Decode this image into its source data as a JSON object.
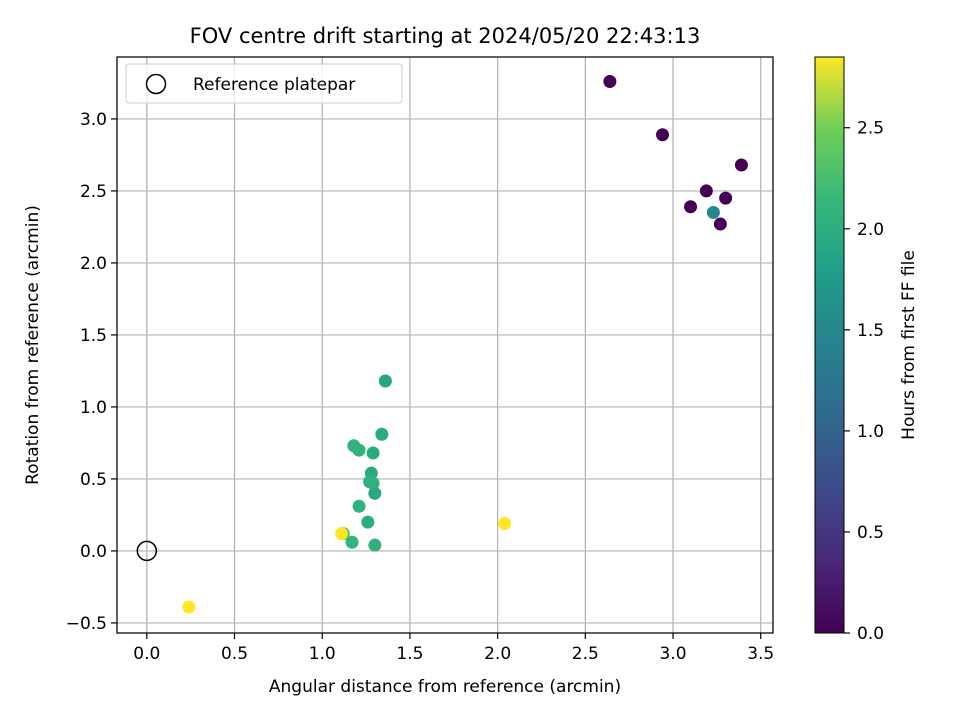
{
  "chart_data": {
    "type": "scatter",
    "title": "FOV centre drift starting at 2024/05/20 22:43:13",
    "xlabel": "Angular distance from reference (arcmin)",
    "ylabel": "Rotation from reference (arcmin)",
    "xlim": [
      -0.17,
      3.57
    ],
    "ylim": [
      -0.57,
      3.43
    ],
    "xticks": [
      0.0,
      0.5,
      1.0,
      1.5,
      2.0,
      2.5,
      3.0,
      3.5
    ],
    "xtick_labels": [
      "0.0",
      "0.5",
      "1.0",
      "1.5",
      "2.0",
      "2.5",
      "3.0",
      "3.5"
    ],
    "yticks": [
      -0.5,
      0.0,
      0.5,
      1.0,
      1.5,
      2.0,
      2.5,
      3.0
    ],
    "ytick_labels": [
      "−0.5",
      "0.0",
      "0.5",
      "1.0",
      "1.5",
      "2.0",
      "2.5",
      "3.0"
    ],
    "grid": true,
    "legend": {
      "placement": "top-left",
      "entries": [
        {
          "label": "Reference platepar",
          "marker": "open-circle"
        }
      ]
    },
    "reference_point": {
      "x": 0.0,
      "y": 0.0
    },
    "colorbar": {
      "label": "Hours from first FF file",
      "colormap": "viridis",
      "range": [
        0.0,
        2.85
      ],
      "ticks": [
        0.0,
        0.5,
        1.0,
        1.5,
        2.0,
        2.5
      ],
      "tick_labels": [
        "0.0",
        "0.5",
        "1.0",
        "1.5",
        "2.0",
        "2.5"
      ]
    },
    "points": [
      {
        "x": 2.64,
        "y": 3.26,
        "c": 0.0
      },
      {
        "x": 2.94,
        "y": 2.89,
        "c": 0.0
      },
      {
        "x": 3.39,
        "y": 2.68,
        "c": 0.0
      },
      {
        "x": 3.19,
        "y": 2.5,
        "c": 0.0
      },
      {
        "x": 3.3,
        "y": 2.45,
        "c": 0.0
      },
      {
        "x": 3.1,
        "y": 2.39,
        "c": 0.0
      },
      {
        "x": 3.27,
        "y": 2.27,
        "c": 0.0
      },
      {
        "x": 3.23,
        "y": 2.35,
        "c": 1.5
      },
      {
        "x": 1.36,
        "y": 1.18,
        "c": 1.9
      },
      {
        "x": 1.34,
        "y": 0.81,
        "c": 1.95
      },
      {
        "x": 1.18,
        "y": 0.73,
        "c": 2.05
      },
      {
        "x": 1.21,
        "y": 0.7,
        "c": 2.05
      },
      {
        "x": 1.29,
        "y": 0.68,
        "c": 1.95
      },
      {
        "x": 1.28,
        "y": 0.54,
        "c": 1.95
      },
      {
        "x": 1.27,
        "y": 0.48,
        "c": 2.05
      },
      {
        "x": 1.29,
        "y": 0.47,
        "c": 2.05
      },
      {
        "x": 1.3,
        "y": 0.4,
        "c": 1.95
      },
      {
        "x": 1.21,
        "y": 0.31,
        "c": 2.05
      },
      {
        "x": 1.26,
        "y": 0.2,
        "c": 2.0
      },
      {
        "x": 1.12,
        "y": 0.12,
        "c": 2.25
      },
      {
        "x": 1.11,
        "y": 0.12,
        "c": 2.85
      },
      {
        "x": 1.17,
        "y": 0.06,
        "c": 2.1
      },
      {
        "x": 1.3,
        "y": 0.04,
        "c": 2.05
      },
      {
        "x": 2.04,
        "y": 0.19,
        "c": 2.85
      },
      {
        "x": 0.24,
        "y": -0.39,
        "c": 2.85
      }
    ]
  }
}
